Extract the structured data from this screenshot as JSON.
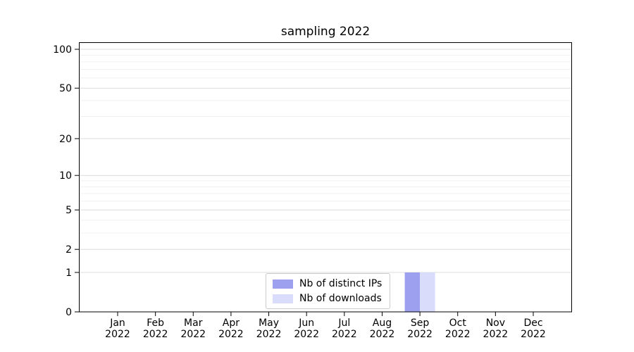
{
  "title": "sampling 2022",
  "chart_data": {
    "type": "bar",
    "title": "sampling 2022",
    "yscale": "log1p",
    "grid": true,
    "legend_position": "lower center",
    "xlabel": "",
    "ylabel": "",
    "ylim": [
      0,
      113
    ],
    "categories": [
      "Jan 2022",
      "Feb 2022",
      "Mar 2022",
      "Apr 2022",
      "May 2022",
      "Jun 2022",
      "Jul 2022",
      "Aug 2022",
      "Sep 2022",
      "Oct 2022",
      "Nov 2022",
      "Dec 2022"
    ],
    "y_ticks": [
      100,
      50,
      20,
      10,
      5,
      2,
      1,
      0
    ],
    "y_minor_gridlines": [
      3,
      4,
      6,
      7,
      8,
      9,
      30,
      40,
      60,
      70,
      80,
      90
    ],
    "series": [
      {
        "name": "Nb of distinct IPs",
        "color": "#9da0ef",
        "values": [
          0,
          0,
          0,
          0,
          0,
          0,
          0,
          0,
          1,
          0,
          0,
          0
        ]
      },
      {
        "name": "Nb of downloads",
        "color": "#d9dcfa",
        "values": [
          0,
          0,
          0,
          0,
          0,
          0,
          0,
          0,
          1,
          0,
          0,
          0
        ]
      }
    ]
  }
}
